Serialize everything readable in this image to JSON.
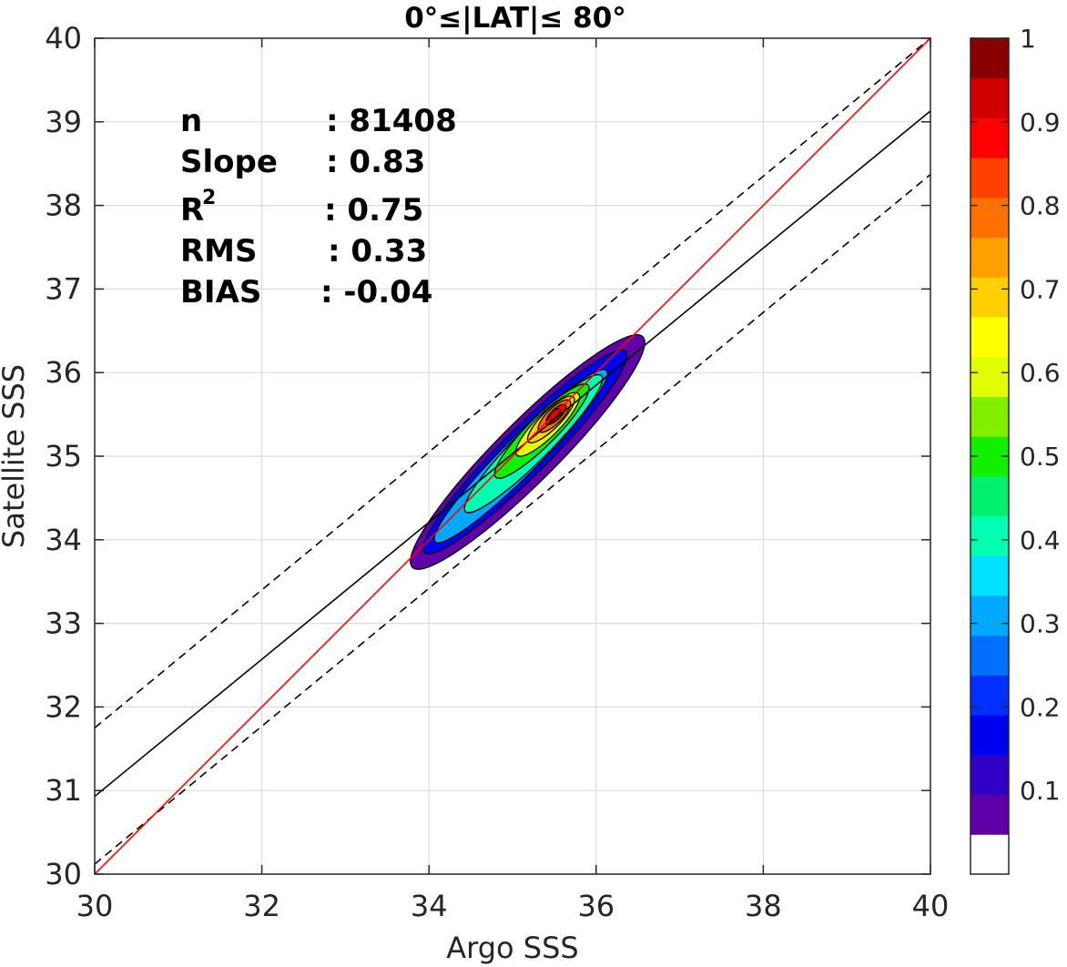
{
  "chart_data": {
    "type": "scatter",
    "subtype": "filled-density-contour",
    "title": "0°≤|LAT|≤ 80°",
    "xlabel": "Argo SSS",
    "ylabel": "Satellite SSS",
    "xlim": [
      30,
      40
    ],
    "ylim": [
      30,
      40
    ],
    "xticks": [
      "30",
      "32",
      "34",
      "36",
      "38",
      "40"
    ],
    "yticks": [
      "30",
      "31",
      "32",
      "33",
      "34",
      "35",
      "36",
      "37",
      "38",
      "39",
      "40"
    ],
    "grid": true,
    "stats": {
      "n_label": "n",
      "n_value": ": 81408",
      "slope_label": "Slope",
      "slope_value": ": 0.83",
      "r2_label": "R",
      "r2_sup": "2",
      "r2_value": ": 0.75",
      "rms_label": "RMS",
      "rms_value": ": 0.33",
      "bias_label": "BIAS",
      "bias_value": ": -0.04"
    },
    "lines": {
      "one_to_one": {
        "from": [
          30,
          30
        ],
        "to": [
          40,
          40
        ],
        "color": "#ff0000",
        "style": "solid"
      },
      "fit": {
        "from": [
          30,
          30.93
        ],
        "to": [
          40,
          39.13
        ],
        "color": "#000000",
        "style": "solid"
      },
      "fit_upper": {
        "from": [
          30,
          31.75
        ],
        "to": [
          40,
          40
        ],
        "color": "#000000",
        "style": "dashed"
      },
      "fit_lower": {
        "from": [
          30,
          30.12
        ],
        "to": [
          40,
          38.37
        ],
        "color": "#000000",
        "style": "dashed"
      }
    },
    "density": {
      "center": [
        35.5,
        35.5
      ],
      "peak_normalized": 1.0,
      "contour_levels": [
        0.05,
        0.1,
        0.2,
        0.3,
        0.4,
        0.5,
        0.6,
        0.7,
        0.8,
        0.9
      ]
    },
    "colorbar": {
      "range": [
        0,
        1
      ],
      "ticks": [
        "0.1",
        "0.2",
        "0.3",
        "0.4",
        "0.5",
        "0.6",
        "0.7",
        "0.8",
        "0.9",
        "1"
      ],
      "colors": [
        "#ffffff",
        "#5f00a8",
        "#3000c8",
        "#0000f0",
        "#0030ff",
        "#0070ff",
        "#00a8ff",
        "#00e0ff",
        "#00ffb0",
        "#00f070",
        "#10f000",
        "#80f000",
        "#e0ff00",
        "#ffff00",
        "#ffd000",
        "#ffa000",
        "#ff7000",
        "#ff4000",
        "#ff0000",
        "#d00000",
        "#880000"
      ]
    }
  }
}
